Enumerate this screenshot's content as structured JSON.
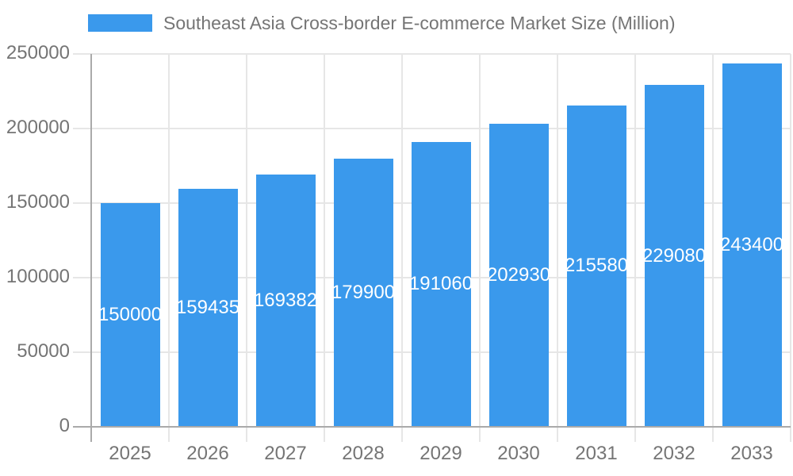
{
  "chart_data": {
    "type": "bar",
    "title": "Southeast Asia Cross-border E-commerce Market Size (Million)",
    "legend_position": "top",
    "categories": [
      "2025",
      "2026",
      "2027",
      "2028",
      "2029",
      "2030",
      "2031",
      "2032",
      "2033"
    ],
    "series": [
      {
        "name": "Southeast Asia Cross-border E-commerce Market Size (Million)",
        "values": [
          150000,
          159435,
          169382,
          179900,
          191060,
          202930,
          215580,
          229080,
          243400
        ]
      }
    ],
    "xlabel": "",
    "ylabel": "",
    "ylim": [
      0,
      250000
    ],
    "ytick_step": 50000,
    "yticks": [
      0,
      50000,
      100000,
      150000,
      200000,
      250000
    ],
    "grid": true,
    "bar_labels_visible": true
  },
  "colors": {
    "bar": "#3a99ec",
    "bar_label": "#ffffff",
    "axis_text": "#757575",
    "grid_line": "#e6e6e6",
    "axis_line": "#aaaaaa",
    "background": "#ffffff"
  }
}
